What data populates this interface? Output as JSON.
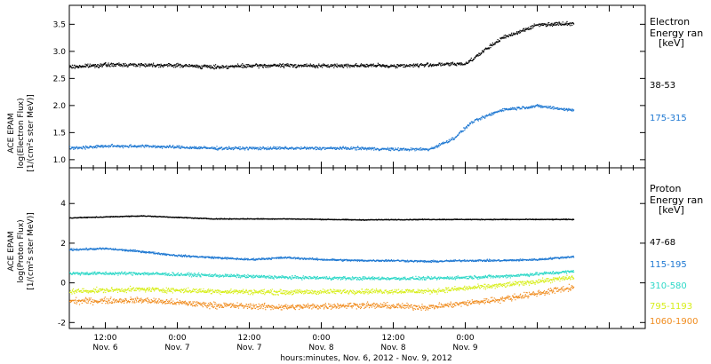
{
  "chart_data": [
    {
      "type": "scatter",
      "panel": "electron",
      "ylabel": [
        "ACE EPAM",
        "log(Electron Flux)",
        "[1/(cm²s ster MeV)]"
      ],
      "ylim": [
        0.85,
        3.85
      ],
      "yticks": [
        1.0,
        1.5,
        2.0,
        2.5,
        3.0,
        3.5
      ],
      "ytick_labels": [
        "1.0",
        "1.5",
        "2.0",
        "2.5",
        "3.0",
        "3.5"
      ],
      "legend_title": [
        "Electron",
        "Energy ran",
        "[keV]"
      ],
      "series": [
        {
          "name": "38-53",
          "color": "#000000",
          "x": [
            0,
            6,
            12,
            18,
            24,
            30,
            36,
            42,
            48,
            54,
            60,
            66,
            72,
            78,
            84
          ],
          "y": [
            2.72,
            2.76,
            2.76,
            2.75,
            2.72,
            2.74,
            2.75,
            2.74,
            2.75,
            2.74,
            2.76,
            2.78,
            3.25,
            3.5,
            3.53
          ],
          "spread": 0.05
        },
        {
          "name": "175-315",
          "color": "#1E78D2",
          "x": [
            0,
            6,
            12,
            18,
            24,
            30,
            36,
            42,
            48,
            54,
            60,
            64,
            67,
            72,
            78,
            84
          ],
          "y": [
            1.22,
            1.26,
            1.26,
            1.24,
            1.22,
            1.22,
            1.22,
            1.22,
            1.22,
            1.2,
            1.2,
            1.4,
            1.7,
            1.93,
            2.0,
            1.92
          ],
          "spread": 0.04
        }
      ]
    },
    {
      "type": "scatter",
      "panel": "proton",
      "ylabel": [
        "ACE EPAM",
        "log(Proton Flux)",
        "[1/(cm²s ster MeV)]"
      ],
      "ylim": [
        -2.3,
        5.8
      ],
      "yticks": [
        -2,
        0,
        2,
        4
      ],
      "ytick_labels": [
        "-2",
        "0",
        "2",
        "4"
      ],
      "legend_title": [
        "Proton",
        "Energy ran",
        "[keV]"
      ],
      "series": [
        {
          "name": "47-68",
          "color": "#000000",
          "x": [
            0,
            12,
            24,
            36,
            48,
            60,
            72,
            84
          ],
          "y": [
            3.3,
            3.4,
            3.25,
            3.25,
            3.2,
            3.22,
            3.22,
            3.22
          ],
          "spread": 0.03
        },
        {
          "name": "115-195",
          "color": "#1E78D2",
          "x": [
            0,
            6,
            12,
            18,
            24,
            30,
            36,
            42,
            48,
            54,
            60,
            66,
            72,
            78,
            84
          ],
          "y": [
            1.7,
            1.75,
            1.6,
            1.4,
            1.3,
            1.2,
            1.3,
            1.2,
            1.15,
            1.15,
            1.1,
            1.15,
            1.15,
            1.2,
            1.35
          ],
          "spread": 0.07
        },
        {
          "name": "310-580",
          "color": "#2ED8C8",
          "x": [
            0,
            12,
            24,
            36,
            48,
            60,
            72,
            84
          ],
          "y": [
            0.5,
            0.5,
            0.4,
            0.3,
            0.25,
            0.25,
            0.35,
            0.6
          ],
          "spread": 0.12
        },
        {
          "name": "795-1193",
          "color": "#D7EE1A",
          "x": [
            0,
            12,
            24,
            36,
            48,
            60,
            72,
            84
          ],
          "y": [
            -0.4,
            -0.3,
            -0.4,
            -0.45,
            -0.4,
            -0.4,
            -0.1,
            0.3
          ],
          "spread": 0.18
        },
        {
          "name": "1060-1900",
          "color": "#F08C1E",
          "x": [
            0,
            12,
            24,
            36,
            48,
            60,
            72,
            84
          ],
          "y": [
            -0.9,
            -0.85,
            -1.1,
            -1.2,
            -1.1,
            -1.2,
            -0.8,
            -0.2
          ],
          "spread": 0.22
        }
      ]
    }
  ],
  "x_axis": {
    "xlim": [
      0,
      96
    ],
    "ticks": [
      {
        "hour": 6,
        "time": "12:00",
        "date": "Nov. 6"
      },
      {
        "hour": 18,
        "time": "0:00",
        "date": "Nov. 7"
      },
      {
        "hour": 30,
        "time": "12:00",
        "date": "Nov. 7"
      },
      {
        "hour": 42,
        "time": "0:00",
        "date": "Nov. 8"
      },
      {
        "hour": 54,
        "time": "12:00",
        "date": "Nov. 8"
      },
      {
        "hour": 66,
        "time": "0:00",
        "date": "Nov. 9"
      }
    ],
    "xlabel": "hours:minutes, Nov.  6, 2012 - Nov.  9, 2012"
  }
}
